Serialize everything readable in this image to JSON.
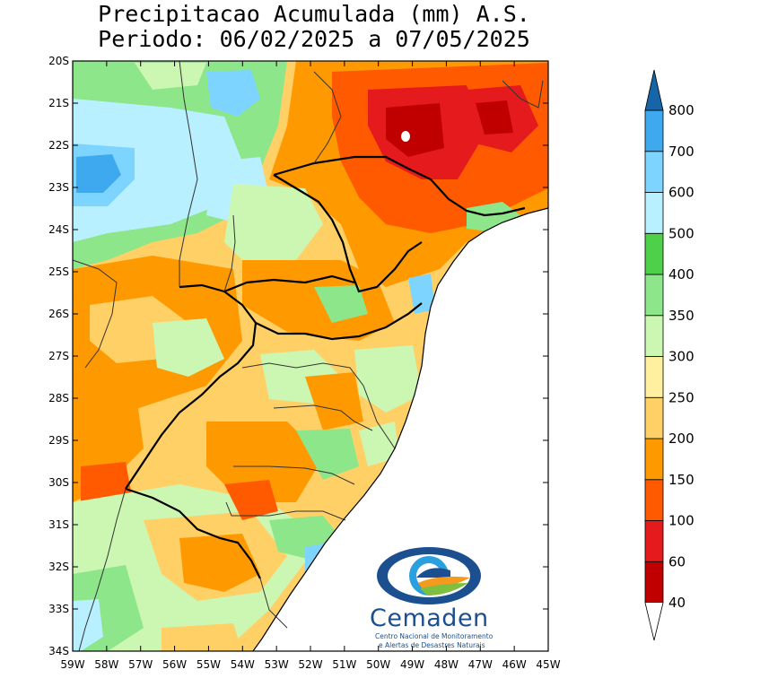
{
  "title": {
    "line1": "Precipitacao Acumulada (mm) A.S.",
    "line2": "Periodo: 06/02/2025 a 07/05/2025"
  },
  "axes": {
    "lat_labels": [
      "20S",
      "21S",
      "22S",
      "23S",
      "24S",
      "25S",
      "26S",
      "27S",
      "28S",
      "29S",
      "30S",
      "31S",
      "32S",
      "33S",
      "34S"
    ],
    "lon_labels": [
      "59W",
      "58W",
      "57W",
      "56W",
      "55W",
      "54W",
      "53W",
      "52W",
      "51W",
      "50W",
      "49W",
      "48W",
      "47W",
      "46W",
      "45W"
    ]
  },
  "colorbar": {
    "labels": [
      "40",
      "60",
      "100",
      "150",
      "200",
      "250",
      "300",
      "350",
      "400",
      "500",
      "600",
      "700",
      "800"
    ],
    "colors": [
      "#c00000",
      "#e41a1c",
      "#ff5a00",
      "#ff9900",
      "#ffd066",
      "#fff0a0",
      "#ccf7b3",
      "#8de68a",
      "#4ed04a",
      "#b8f0ff",
      "#7dd4ff",
      "#3fa9f0",
      "#1f7fcc",
      "#1565a8"
    ]
  },
  "logo": {
    "name": "Cemaden",
    "subtitle_line1": "Centro Nacional de Monitoramento",
    "subtitle_line2": "e Alertas de Desastres Naturais"
  },
  "map_colors": {
    "ocean": "#ffffff",
    "base_land": "#ffd066",
    "orange": "#ff9900",
    "dark_orange": "#ff5a00",
    "red": "#e41a1c",
    "dark_red": "#c00000",
    "light_green": "#ccf7b3",
    "green": "#8de68a",
    "bright_green": "#4ed04a",
    "cyan": "#b8f0ff",
    "blue": "#7dd4ff",
    "deep_blue": "#3fa9f0"
  }
}
